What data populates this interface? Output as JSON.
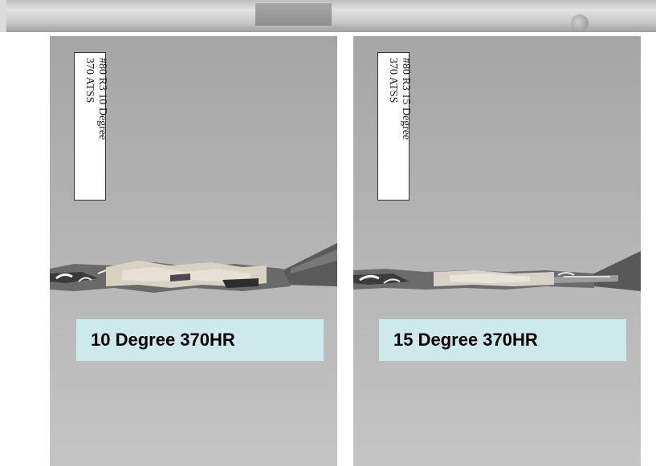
{
  "panels": [
    {
      "label_line1": "#80 R3 10 Degree",
      "label_line2": "370 ATSS",
      "caption": "10 Degree 370HR"
    },
    {
      "label_line1": "#80 R3 15 Degree",
      "label_line2": "370 ATSS",
      "caption": "15 Degree 370HR"
    }
  ],
  "colors": {
    "caption_background": "#cde9ea",
    "photo_background": "#b0b0b0"
  }
}
